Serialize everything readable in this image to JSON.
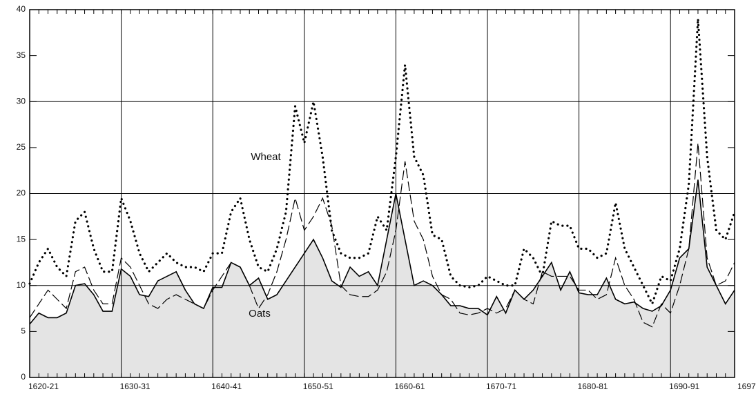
{
  "chart_data": {
    "type": "line",
    "categories": [
      "1620-21",
      null,
      null,
      null,
      null,
      null,
      null,
      null,
      null,
      null,
      "1630-31",
      null,
      null,
      null,
      null,
      null,
      null,
      null,
      null,
      null,
      "1640-41",
      null,
      null,
      null,
      null,
      null,
      null,
      null,
      null,
      null,
      "1650-51",
      null,
      null,
      null,
      null,
      null,
      null,
      null,
      null,
      null,
      "1660-61",
      null,
      null,
      null,
      null,
      null,
      null,
      null,
      null,
      null,
      "1670-71",
      null,
      null,
      null,
      null,
      null,
      null,
      null,
      null,
      null,
      "1680-81",
      null,
      null,
      null,
      null,
      null,
      null,
      null,
      null,
      null,
      "1690-91",
      null,
      null,
      null,
      null,
      null,
      null,
      "1697-"
    ],
    "series": [
      {
        "name": "Wheat",
        "color": "#000000",
        "dash": "dotted",
        "values": [
          10.2,
          12.5,
          14,
          12,
          11,
          17,
          18,
          14,
          11.5,
          11.5,
          19.5,
          17,
          13.5,
          11.5,
          12.5,
          13.5,
          12.5,
          12,
          12,
          11.5,
          13.5,
          13.5,
          18,
          19.5,
          15,
          12,
          11.5,
          14,
          18,
          29.5,
          25.5,
          30,
          24,
          16,
          13.5,
          13,
          13,
          13.5,
          17.5,
          16,
          24,
          34,
          24,
          22,
          15.5,
          15,
          11,
          10,
          9.8,
          10,
          11,
          10.5,
          10,
          10,
          14,
          13,
          11,
          17,
          16.5,
          16.5,
          14,
          14,
          13,
          13.5,
          19,
          14,
          12,
          10,
          8,
          11,
          10.5,
          14,
          21,
          39,
          24,
          16,
          15,
          18
        ]
      },
      {
        "color": "#000000",
        "dash": "dashed",
        "values": [
          6.5,
          8,
          9.5,
          8.5,
          7.5,
          11.5,
          12,
          9.5,
          8,
          8,
          13,
          12,
          10,
          8,
          7.5,
          8.5,
          9,
          8.5,
          8,
          7.5,
          9.5,
          11,
          12.5,
          12,
          10,
          7.5,
          9,
          11.5,
          15,
          19.5,
          16,
          17.5,
          19.5,
          16.5,
          10,
          9,
          8.8,
          8.8,
          9.5,
          11.5,
          16,
          23.5,
          17,
          15,
          11,
          9,
          8.5,
          7,
          6.8,
          7,
          7.5,
          7,
          7.5,
          9.5,
          8.5,
          8,
          11.5,
          11,
          11,
          11,
          9.5,
          9.5,
          8.5,
          9,
          13,
          10,
          8.5,
          6,
          5.5,
          8,
          7,
          10,
          14,
          25.5,
          13,
          10,
          10.5,
          12.5
        ]
      },
      {
        "name": "Oats",
        "color": "#000000",
        "dash": "solid",
        "area": true,
        "area_color": "#e4e4e4",
        "values": [
          5.8,
          7,
          6.5,
          6.5,
          7,
          10,
          10.2,
          9,
          7.2,
          7.2,
          11.8,
          11,
          9,
          8.8,
          10.5,
          11,
          11.5,
          9.5,
          8,
          7.5,
          9.8,
          9.8,
          12.5,
          12,
          10,
          10.8,
          8.5,
          9,
          10.5,
          12,
          13.5,
          15,
          13,
          10.5,
          9.8,
          12,
          11,
          11.5,
          10,
          15,
          20,
          15,
          10,
          10.5,
          10,
          9,
          7.8,
          7.8,
          7.5,
          7.5,
          6.8,
          8.8,
          7,
          9.5,
          8.5,
          9.5,
          11,
          12.5,
          9.5,
          11.5,
          9.2,
          9,
          9,
          10.8,
          8.5,
          8,
          8.2,
          7.5,
          7.2,
          7.8,
          9.5,
          13,
          14,
          21.5,
          12,
          10,
          8,
          9.5
        ]
      }
    ],
    "ylim": [
      0,
      40
    ],
    "yticks": [
      0,
      5,
      10,
      15,
      20,
      25,
      30,
      35,
      40
    ],
    "grid": true
  }
}
